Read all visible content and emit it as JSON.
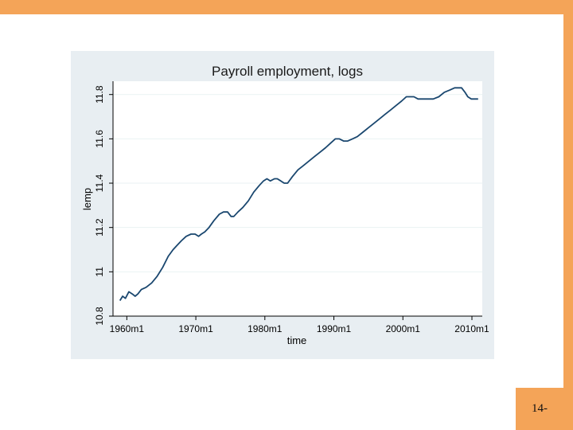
{
  "slide": {
    "page_number": "14-",
    "accent_color": "#f4a458"
  },
  "chart_data": {
    "type": "line",
    "title": "Payroll employment, logs",
    "xlabel": "time",
    "ylabel": "lemp",
    "xlim": [
      1958,
      2011.5
    ],
    "ylim": [
      10.8,
      11.86
    ],
    "x_ticks": [
      1960,
      1970,
      1980,
      1990,
      2000,
      2010
    ],
    "x_tick_labels": [
      "1960m1",
      "1970m1",
      "1980m1",
      "1990m1",
      "2000m1",
      "2010m1"
    ],
    "y_ticks": [
      10.8,
      11.0,
      11.2,
      11.4,
      11.6,
      11.8
    ],
    "y_tick_labels": [
      "10.8",
      "11",
      "11.2",
      "11.4",
      "11.6",
      "11.8"
    ],
    "grid": true,
    "background_color": "#e8eef2",
    "plot_color": "#ffffff",
    "line_color": "#1a476f",
    "series": [
      {
        "x": [
          1959.0,
          1959.4,
          1959.8,
          1960.3,
          1960.8,
          1961.2,
          1961.6,
          1962.1,
          1962.8,
          1963.6,
          1964.4,
          1965.2,
          1966.0,
          1966.7,
          1967.3,
          1967.9,
          1968.6,
          1969.3,
          1969.9,
          1970.4,
          1970.8,
          1971.3,
          1971.9,
          1972.6,
          1973.4,
          1974.0,
          1974.6,
          1975.1,
          1975.5,
          1976.1,
          1976.8,
          1977.6,
          1978.4,
          1979.2,
          1979.8,
          1980.3,
          1980.8,
          1981.4,
          1981.8,
          1982.3,
          1982.8,
          1983.3,
          1984.0,
          1984.8,
          1985.6,
          1986.4,
          1987.2,
          1988.0,
          1988.8,
          1989.5,
          1990.2,
          1990.8,
          1991.4,
          1992.0,
          1992.7,
          1993.4,
          1994.2,
          1995.0,
          1995.8,
          1996.6,
          1997.4,
          1998.2,
          1999.0,
          1999.8,
          2000.5,
          2001.0,
          2001.6,
          2002.2,
          2002.9,
          2003.6,
          2004.4,
          2005.2,
          2006.0,
          2006.8,
          2007.5,
          2008.0,
          2008.5,
          2009.0,
          2009.4,
          2009.9,
          2010.4,
          2010.9
        ],
        "y": [
          10.87,
          10.89,
          10.88,
          10.91,
          10.9,
          10.89,
          10.9,
          10.92,
          10.93,
          10.95,
          10.98,
          11.02,
          11.07,
          11.1,
          11.12,
          11.14,
          11.16,
          11.17,
          11.17,
          11.16,
          11.17,
          11.18,
          11.2,
          11.23,
          11.26,
          11.27,
          11.27,
          11.25,
          11.25,
          11.27,
          11.29,
          11.32,
          11.36,
          11.39,
          11.41,
          11.42,
          11.41,
          11.42,
          11.42,
          11.41,
          11.4,
          11.4,
          11.43,
          11.46,
          11.48,
          11.5,
          11.52,
          11.54,
          11.56,
          11.58,
          11.6,
          11.6,
          11.59,
          11.59,
          11.6,
          11.61,
          11.63,
          11.65,
          11.67,
          11.69,
          11.71,
          11.73,
          11.75,
          11.77,
          11.79,
          11.79,
          11.79,
          11.78,
          11.78,
          11.78,
          11.78,
          11.79,
          11.81,
          11.82,
          11.83,
          11.83,
          11.83,
          11.81,
          11.79,
          11.78,
          11.78,
          11.78
        ]
      }
    ]
  }
}
